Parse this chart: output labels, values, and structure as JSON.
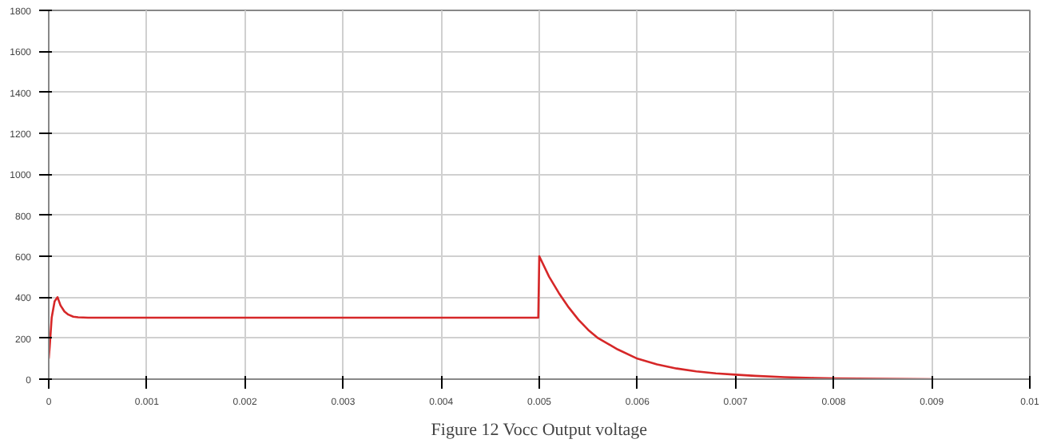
{
  "chart_data": {
    "type": "line",
    "title": "Figure 12 Vocc Output voltage",
    "x": [
      0,
      1e-05,
      3e-05,
      6e-05,
      9e-05,
      0.00012,
      0.00016,
      0.0002,
      0.00025,
      0.0003,
      0.0004,
      0.0005,
      0.001,
      0.002,
      0.003,
      0.004,
      0.00499,
      0.005,
      0.0051,
      0.0052,
      0.0053,
      0.0054,
      0.0055,
      0.0056,
      0.0058,
      0.006,
      0.0062,
      0.0064,
      0.0066,
      0.0068,
      0.007,
      0.0072,
      0.0075,
      0.0078,
      0.008,
      0.0085,
      0.009
    ],
    "series": [
      {
        "color": "#d62728",
        "values": [
          100,
          160,
          300,
          380,
          400,
          360,
          330,
          315,
          305,
          302,
          300,
          300,
          300,
          300,
          300,
          300,
          300,
          600,
          500,
          420,
          350,
          290,
          240,
          200,
          145,
          100,
          72,
          52,
          38,
          28,
          22,
          16,
          10,
          6,
          4,
          2,
          0
        ]
      }
    ],
    "xlim": [
      0,
      0.01
    ],
    "ylim": [
      0,
      1800
    ],
    "xticks": [
      0,
      0.001,
      0.002,
      0.003,
      0.004,
      0.005,
      0.006,
      0.007,
      0.008,
      0.009,
      0.01
    ],
    "yticks": [
      0,
      200,
      400,
      600,
      800,
      1000,
      1200,
      1400,
      1600,
      1800
    ],
    "grid": true,
    "line_style": "solid"
  }
}
